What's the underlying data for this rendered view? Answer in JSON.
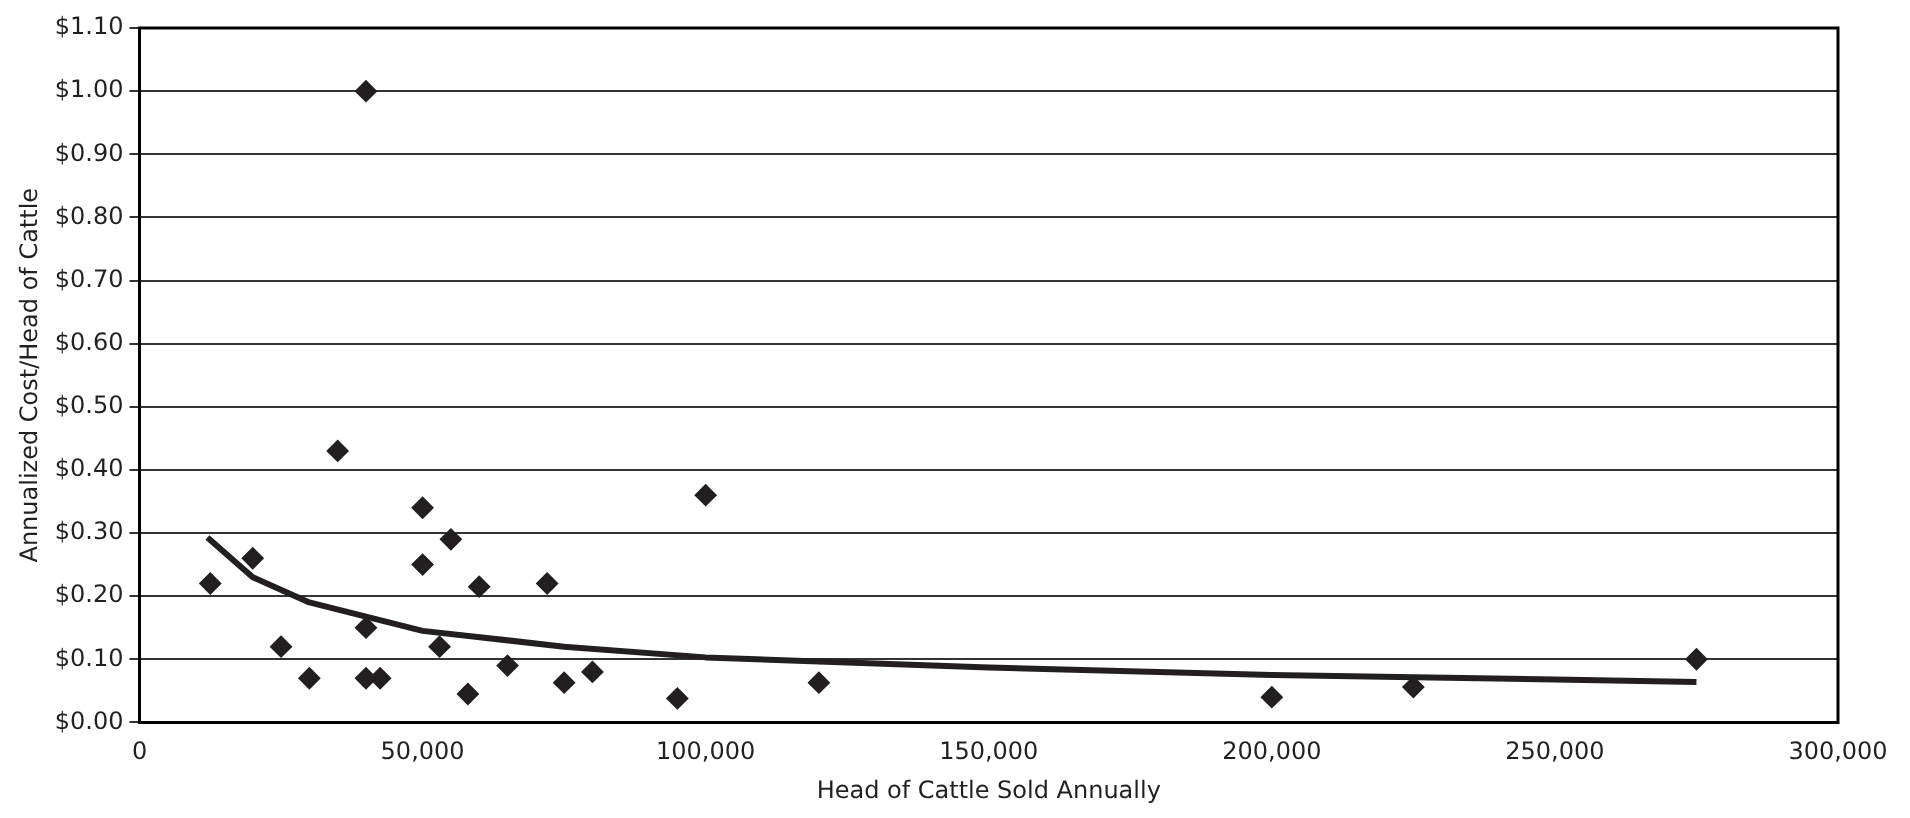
{
  "chart_data": {
    "type": "scatter",
    "xlabel": "Head of Cattle Sold Annually",
    "ylabel": "Annualized Cost/Head of Cattle",
    "xlim": [
      0,
      300000
    ],
    "xticks": [
      0,
      {
        "value": 50000,
        "label": "50,000"
      },
      {
        "value": 100000,
        "label": "100,000"
      },
      {
        "value": 150000,
        "label": "150,000"
      },
      {
        "value": 200000,
        "label": "200,000"
      },
      {
        "value": 250000,
        "label": "250,000"
      },
      {
        "value": 300000,
        "label": "300,000"
      }
    ],
    "ylim": [
      0,
      1.1
    ],
    "yticks": [
      {
        "value": 0,
        "label": "$0.00"
      },
      {
        "value": 0.1,
        "label": "$0.10"
      },
      {
        "value": 0.2,
        "label": "$0.20"
      },
      {
        "value": 0.3,
        "label": "$0.30"
      },
      {
        "value": 0.4,
        "label": "$0.40"
      },
      {
        "value": 0.5,
        "label": "$0.50"
      },
      {
        "value": 0.6,
        "label": "$0.60"
      },
      {
        "value": 0.7,
        "label": "$0.70"
      },
      {
        "value": 0.8,
        "label": "$0.80"
      },
      {
        "value": 0.9,
        "label": "$0.90"
      },
      {
        "value": 1.0,
        "label": "$1.00"
      },
      {
        "value": 1.1,
        "label": "$1.10"
      }
    ],
    "grid": "y",
    "legend": false,
    "marker": "diamond",
    "series": [
      {
        "color": "#231f20",
        "x": [
          12500,
          20000,
          25000,
          30000,
          35000,
          40000,
          40000,
          40000,
          42500,
          50000,
          50000,
          53000,
          55000,
          58000,
          60000,
          65000,
          72000,
          75000,
          80000,
          95000,
          100000,
          120000,
          200000,
          225000,
          275000
        ],
        "values": [
          0.22,
          0.26,
          0.12,
          0.07,
          0.43,
          1.0,
          0.07,
          0.15,
          0.07,
          0.34,
          0.25,
          0.12,
          0.29,
          0.045,
          0.215,
          0.09,
          0.22,
          0.063,
          0.08,
          0.038,
          0.36,
          0.063,
          0.04,
          0.056,
          0.1
        ]
      },
      {
        "type": "line",
        "color": "#231f20",
        "marker": "none",
        "x": [
          12000,
          20000,
          30000,
          50000,
          75000,
          100000,
          150000,
          200000,
          250000,
          275000
        ],
        "values": [
          0.293,
          0.23,
          0.19,
          0.145,
          0.12,
          0.103,
          0.087,
          0.075,
          0.068,
          0.064
        ]
      }
    ]
  }
}
